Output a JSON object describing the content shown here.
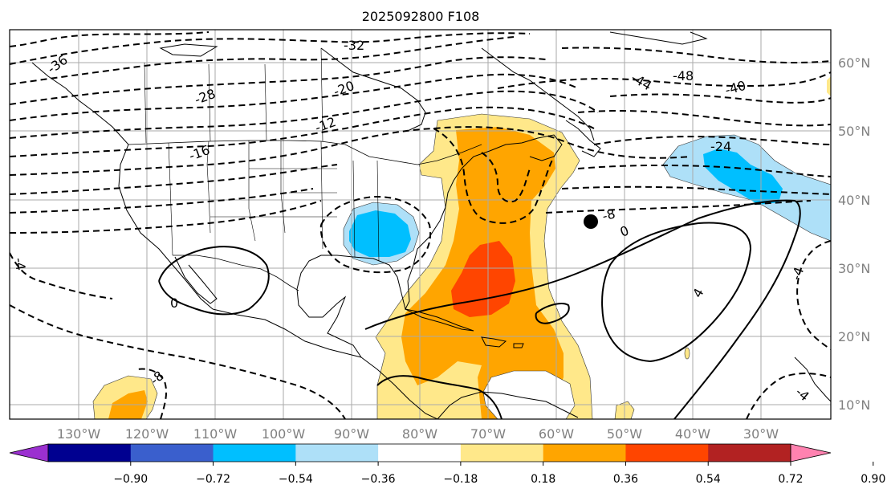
{
  "title": "2025092800 F108",
  "lon_labels": [
    "130°W",
    "120°W",
    "110°W",
    "100°W",
    "90°W",
    "80°W",
    "70°W",
    "60°W",
    "50°W",
    "40°W",
    "30°W"
  ],
  "lat_labels": [
    "60°N",
    "50°N",
    "40°N",
    "30°N",
    "20°N",
    "10°N"
  ],
  "contour_labels": [
    "-36",
    "-32",
    "-28",
    "-20",
    "-16",
    "-12",
    "-44",
    "-48",
    "-40",
    "-24",
    "-8",
    "-8",
    "-4",
    "-4",
    "-4",
    "0",
    "0",
    "4"
  ],
  "colorbar": {
    "tick_labels": [
      "−0.90",
      "−0.72",
      "−0.54",
      "−0.36",
      "−0.18",
      "0.18",
      "0.36",
      "0.54",
      "0.72",
      "0.90"
    ],
    "colors": [
      "#9b30d0",
      "#000090",
      "#3a5fcd",
      "#00bfff",
      "#aee0f8",
      "#ffffff",
      "#ffe88a",
      "#ffa500",
      "#ff4500",
      "#b22222",
      "#ff82b0"
    ]
  },
  "fill_colors": {
    "light_yellow": "#ffe88a",
    "orange": "#ffa500",
    "red_orange": "#ff4500",
    "light_blue": "#aee0f8",
    "blue": "#00bfff"
  }
}
